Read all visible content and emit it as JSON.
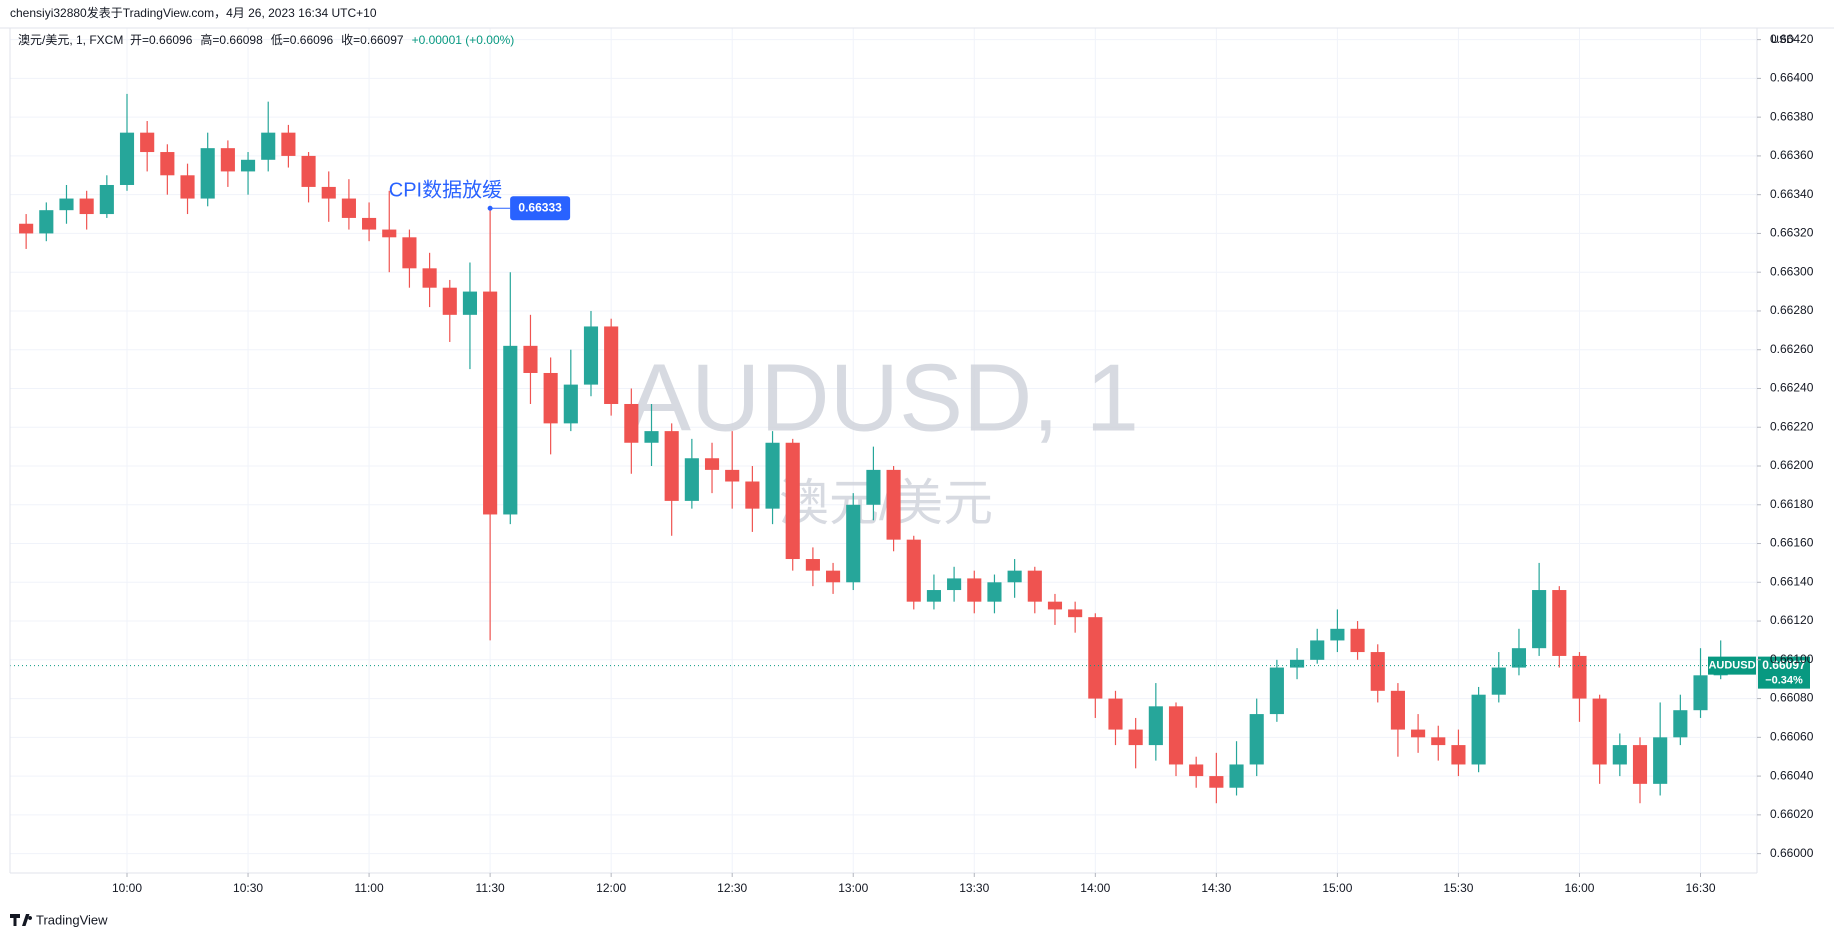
{
  "header": "chensiyi32880发表于TradingView.com，4月 26, 2023 16:34 UTC+10",
  "footer": "TradingView",
  "chart_data": {
    "type": "candlestick",
    "symbol_label": "澳元/美元, 1, FXCM",
    "ohlc_legend": [
      "开=0.66096",
      "高=0.66098",
      "低=0.66096",
      "收=0.66097",
      "+0.00001 (+0.00%)"
    ],
    "watermark": "AUDUSD, 1",
    "watermark_subtitle": "澳元/美元",
    "currency": "USD",
    "up_color": "#26a69a",
    "down_color": "#ef5350",
    "grid": true,
    "annotation": {
      "text": "CPI数据放缓",
      "x": "11:30",
      "price": 0.66333,
      "color": "#2962ff"
    },
    "last_price": {
      "symbol": "AUDUSD",
      "value": 0.66097,
      "change": "−0.34%",
      "color": "#089981"
    },
    "xlim": [
      "09:31",
      "16:44"
    ],
    "xticks": [
      "10:00",
      "10:30",
      "11:00",
      "11:30",
      "12:00",
      "12:30",
      "13:00",
      "13:30",
      "14:00",
      "14:30",
      "15:00",
      "15:30",
      "16:00",
      "16:30"
    ],
    "ylim": [
      0.6599,
      0.66426
    ],
    "yticks": [
      {
        "value": 0.66,
        "label": "0.66000"
      },
      {
        "value": 0.6602,
        "label": "0.66020"
      },
      {
        "value": 0.6604,
        "label": "0.66040"
      },
      {
        "value": 0.6606,
        "label": "0.66060"
      },
      {
        "value": 0.6608,
        "label": "0.66080"
      },
      {
        "value": 0.661,
        "label": "0.66100"
      },
      {
        "value": 0.6612,
        "label": "0.66120"
      },
      {
        "value": 0.6614,
        "label": "0.66140"
      },
      {
        "value": 0.6616,
        "label": "0.66160"
      },
      {
        "value": 0.6618,
        "label": "0.66180"
      },
      {
        "value": 0.662,
        "label": "0.66200"
      },
      {
        "value": 0.6622,
        "label": "0.66220"
      },
      {
        "value": 0.6624,
        "label": "0.66240"
      },
      {
        "value": 0.6626,
        "label": "0.66260"
      },
      {
        "value": 0.6628,
        "label": "0.66280"
      },
      {
        "value": 0.663,
        "label": "0.66300"
      },
      {
        "value": 0.6632,
        "label": "0.66320"
      },
      {
        "value": 0.6634,
        "label": "0.66340"
      },
      {
        "value": 0.6636,
        "label": "0.66360"
      },
      {
        "value": 0.6638,
        "label": "0.66380"
      },
      {
        "value": 0.664,
        "label": "0.66400"
      },
      {
        "value": 0.6642,
        "label": "0.66420"
      }
    ],
    "x": [
      "09:35",
      "09:40",
      "09:45",
      "09:50",
      "09:55",
      "10:00",
      "10:05",
      "10:10",
      "10:15",
      "10:20",
      "10:25",
      "10:30",
      "10:35",
      "10:40",
      "10:45",
      "10:50",
      "10:55",
      "11:00",
      "11:05",
      "11:10",
      "11:15",
      "11:20",
      "11:25",
      "11:30",
      "11:35",
      "11:40",
      "11:45",
      "11:50",
      "11:55",
      "12:00",
      "12:05",
      "12:10",
      "12:15",
      "12:20",
      "12:25",
      "12:30",
      "12:35",
      "12:40",
      "12:45",
      "12:50",
      "12:55",
      "13:00",
      "13:05",
      "13:10",
      "13:15",
      "13:20",
      "13:25",
      "13:30",
      "13:35",
      "13:40",
      "13:45",
      "13:50",
      "13:55",
      "14:00",
      "14:05",
      "14:10",
      "14:15",
      "14:20",
      "14:25",
      "14:30",
      "14:35",
      "14:40",
      "14:45",
      "14:50",
      "14:55",
      "15:00",
      "15:05",
      "15:10",
      "15:15",
      "15:20",
      "15:25",
      "15:30",
      "15:35",
      "15:40",
      "15:45",
      "15:50",
      "15:55",
      "16:00",
      "16:05",
      "16:10",
      "16:15",
      "16:20",
      "16:25",
      "16:30",
      "16:35"
    ],
    "open": [
      0.66325,
      0.6632,
      0.66332,
      0.66338,
      0.6633,
      0.66345,
      0.66372,
      0.66362,
      0.6635,
      0.66338,
      0.66364,
      0.66352,
      0.66358,
      0.66372,
      0.6636,
      0.66344,
      0.66338,
      0.66328,
      0.66322,
      0.66318,
      0.66302,
      0.66292,
      0.66278,
      0.6629,
      0.66175,
      0.66262,
      0.66248,
      0.66222,
      0.66242,
      0.66272,
      0.66232,
      0.66212,
      0.66218,
      0.66182,
      0.66204,
      0.66198,
      0.66192,
      0.66178,
      0.66212,
      0.66152,
      0.66146,
      0.6614,
      0.6618,
      0.66198,
      0.66162,
      0.6613,
      0.66136,
      0.66142,
      0.6613,
      0.6614,
      0.66146,
      0.6613,
      0.66126,
      0.66122,
      0.6608,
      0.66064,
      0.66056,
      0.66076,
      0.66046,
      0.6604,
      0.66034,
      0.66046,
      0.66072,
      0.66096,
      0.661,
      0.6611,
      0.66116,
      0.66104,
      0.66084,
      0.66064,
      0.6606,
      0.66056,
      0.66046,
      0.66082,
      0.66096,
      0.66106,
      0.66136,
      0.66102,
      0.6608,
      0.66046,
      0.66056,
      0.66036,
      0.6606,
      0.66074,
      0.66092
    ],
    "high": [
      0.6633,
      0.66336,
      0.66345,
      0.66342,
      0.6635,
      0.66392,
      0.66378,
      0.66366,
      0.66356,
      0.66372,
      0.66368,
      0.66362,
      0.66388,
      0.66376,
      0.66362,
      0.66352,
      0.66348,
      0.66336,
      0.66342,
      0.66322,
      0.6631,
      0.66296,
      0.66305,
      0.66333,
      0.663,
      0.66278,
      0.66256,
      0.6626,
      0.6628,
      0.66276,
      0.6624,
      0.66232,
      0.66222,
      0.66214,
      0.66212,
      0.66218,
      0.662,
      0.66218,
      0.66214,
      0.66158,
      0.6615,
      0.66186,
      0.6621,
      0.662,
      0.66164,
      0.66144,
      0.66148,
      0.66146,
      0.66144,
      0.66152,
      0.66148,
      0.66134,
      0.6613,
      0.66124,
      0.66084,
      0.6607,
      0.66088,
      0.66078,
      0.6605,
      0.66052,
      0.66058,
      0.6608,
      0.661,
      0.66106,
      0.66116,
      0.66126,
      0.6612,
      0.66108,
      0.66088,
      0.66072,
      0.66066,
      0.66064,
      0.66086,
      0.66104,
      0.66116,
      0.6615,
      0.66138,
      0.66104,
      0.66082,
      0.66062,
      0.6606,
      0.66078,
      0.66082,
      0.66106,
      0.6611
    ],
    "low": [
      0.66312,
      0.66316,
      0.66325,
      0.66322,
      0.66328,
      0.66342,
      0.66352,
      0.6634,
      0.6633,
      0.66334,
      0.66344,
      0.6634,
      0.66352,
      0.66354,
      0.66336,
      0.66326,
      0.66322,
      0.66316,
      0.663,
      0.66292,
      0.66282,
      0.66264,
      0.6625,
      0.6611,
      0.6617,
      0.66232,
      0.66206,
      0.66218,
      0.66236,
      0.66226,
      0.66196,
      0.662,
      0.66164,
      0.66178,
      0.66186,
      0.66178,
      0.66166,
      0.6617,
      0.66146,
      0.66138,
      0.66134,
      0.66136,
      0.66172,
      0.66156,
      0.66126,
      0.66126,
      0.6613,
      0.66124,
      0.66124,
      0.66132,
      0.66124,
      0.66118,
      0.66114,
      0.6607,
      0.66056,
      0.66044,
      0.66048,
      0.6604,
      0.66034,
      0.66026,
      0.6603,
      0.6604,
      0.66068,
      0.6609,
      0.66098,
      0.66104,
      0.661,
      0.66078,
      0.6605,
      0.66052,
      0.66048,
      0.6604,
      0.66042,
      0.66078,
      0.66092,
      0.66102,
      0.66096,
      0.66068,
      0.66036,
      0.6604,
      0.66026,
      0.6603,
      0.66056,
      0.6607,
      0.6609
    ],
    "close": [
      0.6632,
      0.66332,
      0.66338,
      0.6633,
      0.66345,
      0.66372,
      0.66362,
      0.6635,
      0.66338,
      0.66364,
      0.66352,
      0.66358,
      0.66372,
      0.6636,
      0.66344,
      0.66338,
      0.66328,
      0.66322,
      0.66318,
      0.66302,
      0.66292,
      0.66278,
      0.6629,
      0.66175,
      0.66262,
      0.66248,
      0.66222,
      0.66242,
      0.66272,
      0.66232,
      0.66212,
      0.66218,
      0.66182,
      0.66204,
      0.66198,
      0.66192,
      0.66178,
      0.66212,
      0.66152,
      0.66146,
      0.6614,
      0.6618,
      0.66198,
      0.66162,
      0.6613,
      0.66136,
      0.66142,
      0.6613,
      0.6614,
      0.66146,
      0.6613,
      0.66126,
      0.66122,
      0.6608,
      0.66064,
      0.66056,
      0.66076,
      0.66046,
      0.6604,
      0.66034,
      0.66046,
      0.66072,
      0.66096,
      0.661,
      0.6611,
      0.66116,
      0.66104,
      0.66084,
      0.66064,
      0.6606,
      0.66056,
      0.66046,
      0.66082,
      0.66096,
      0.66106,
      0.66136,
      0.66102,
      0.6608,
      0.66046,
      0.66056,
      0.66036,
      0.6606,
      0.66074,
      0.66092,
      0.66097
    ]
  }
}
